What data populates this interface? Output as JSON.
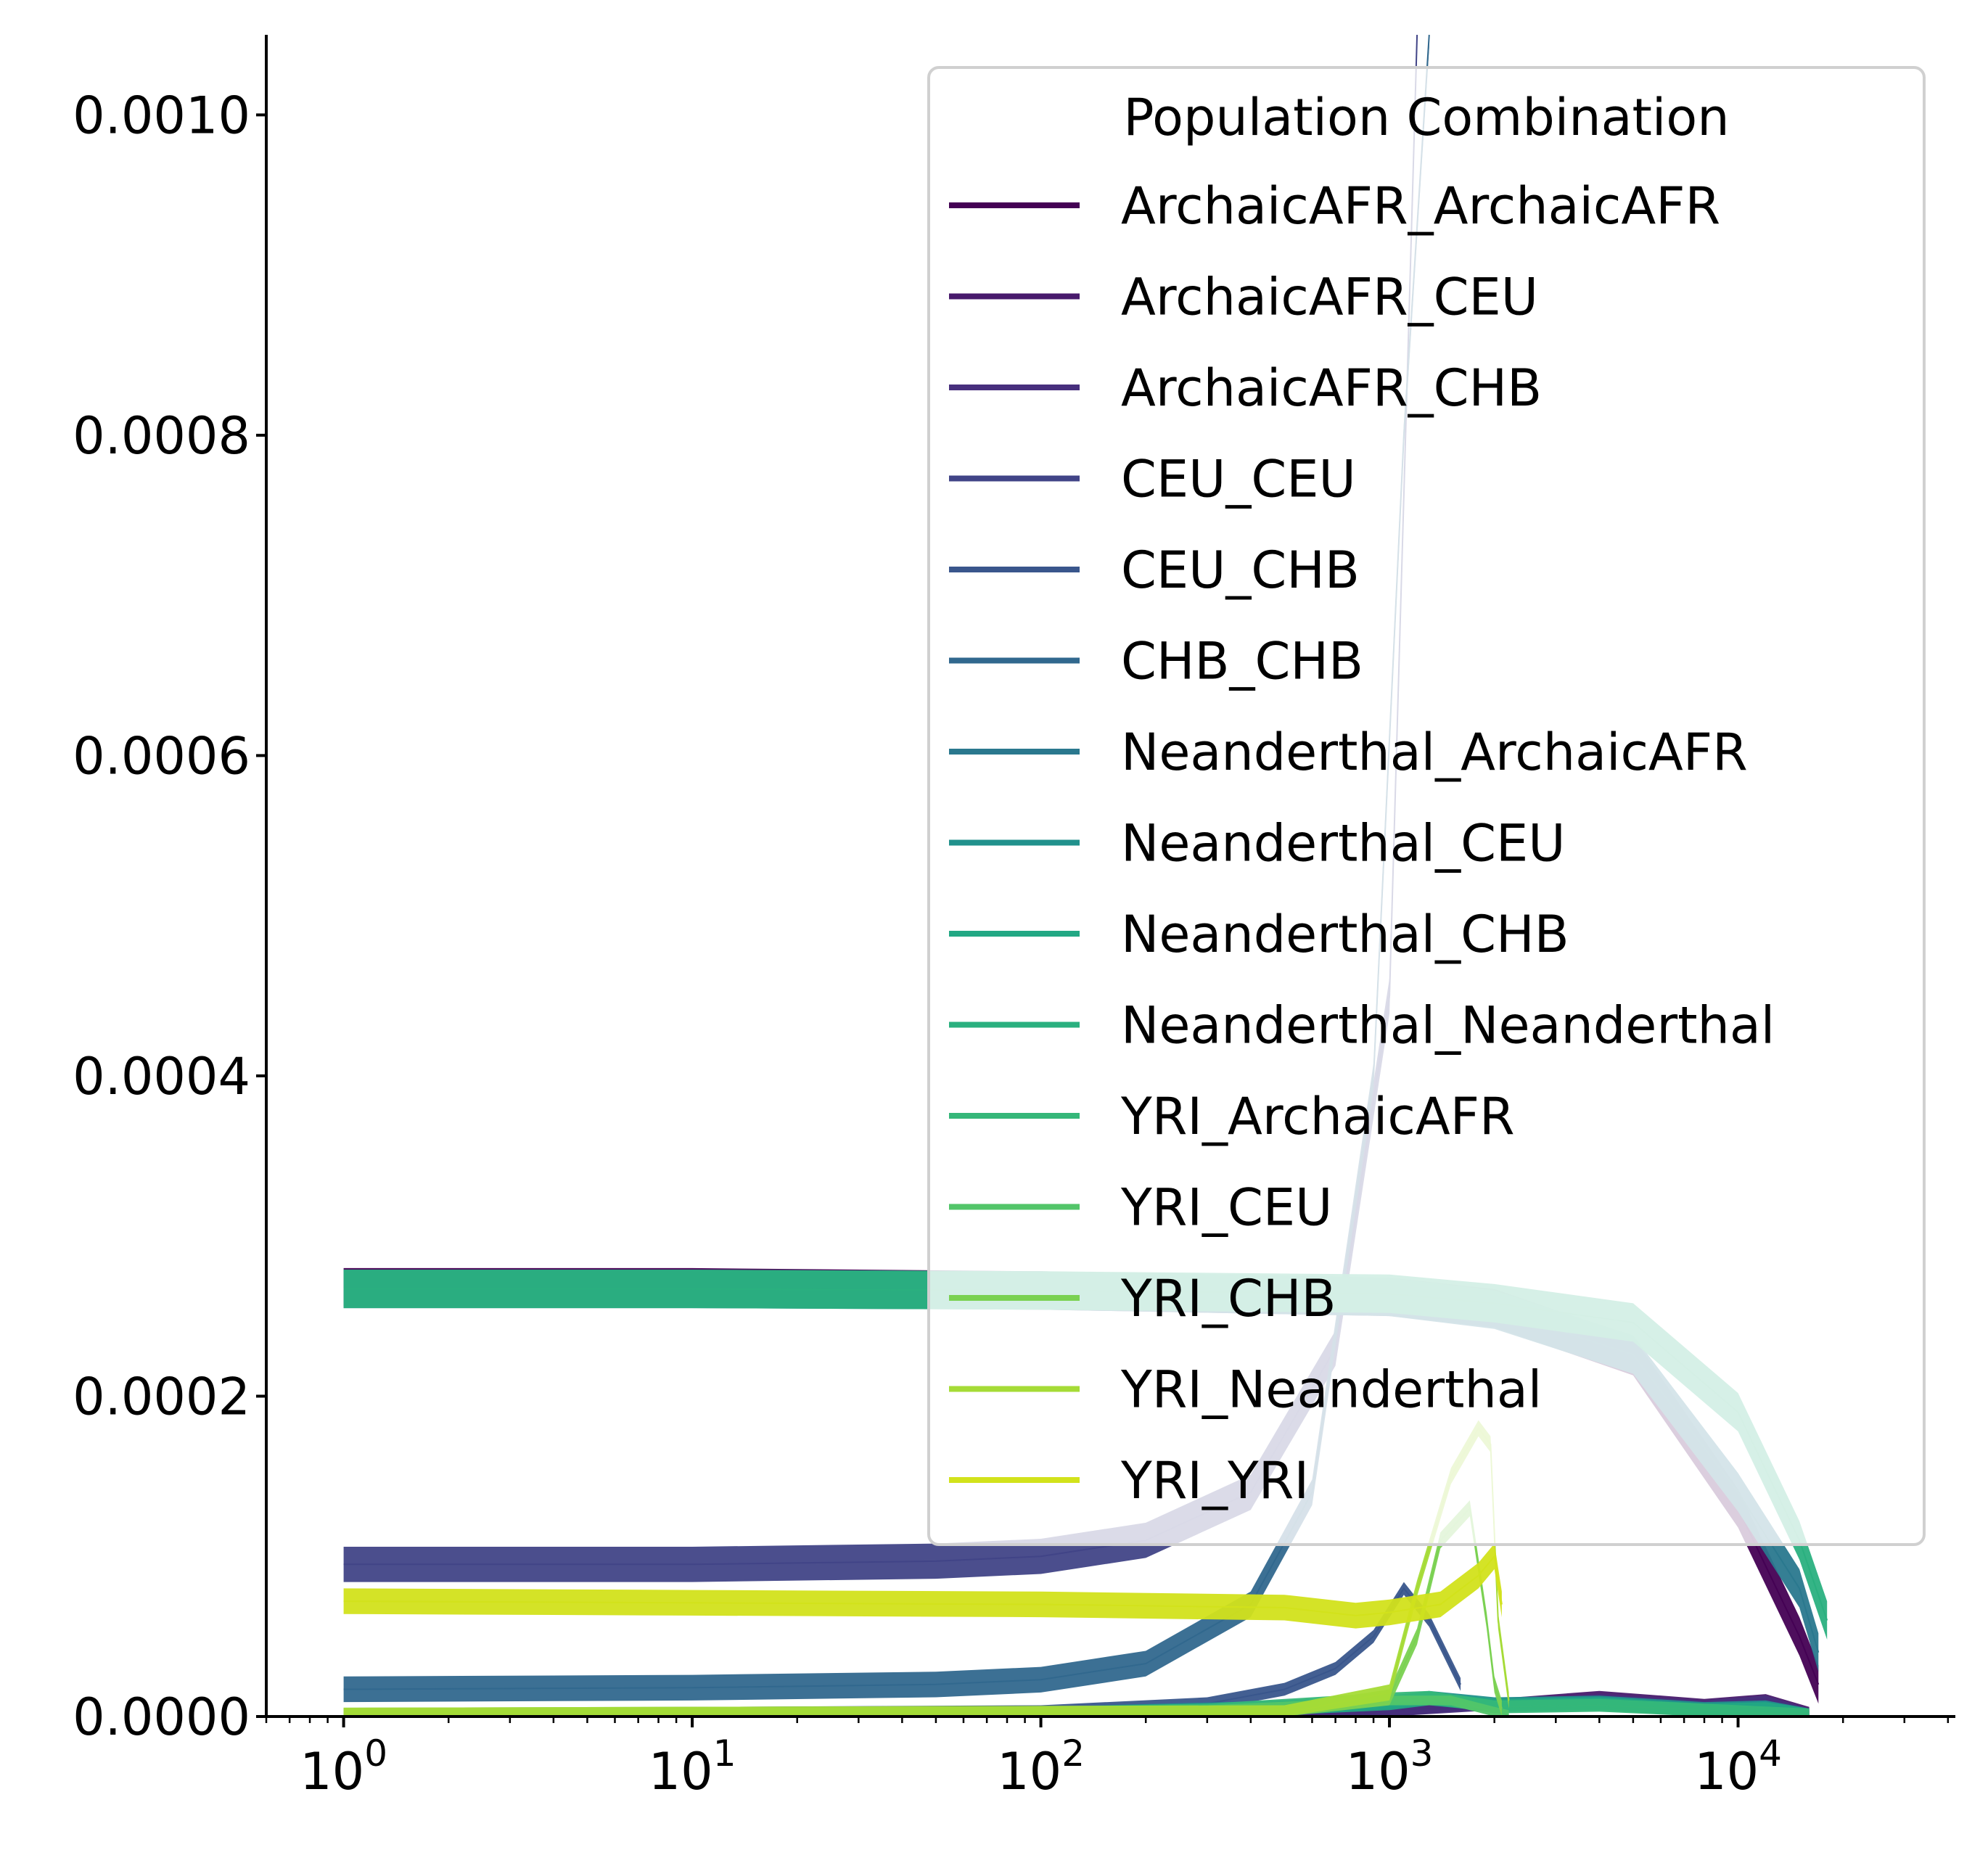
{
  "chart_data": {
    "type": "line",
    "title": "",
    "xlabel": "",
    "ylabel": "",
    "xscale": "log",
    "xlim": [
      0.6,
      42000
    ],
    "ylim": [
      0,
      0.00105
    ],
    "x_tick_labels": [
      {
        "base": "10",
        "exp": "0",
        "value": 1
      },
      {
        "base": "10",
        "exp": "1",
        "value": 10
      },
      {
        "base": "10",
        "exp": "2",
        "value": 100
      },
      {
        "base": "10",
        "exp": "3",
        "value": 1000
      },
      {
        "base": "10",
        "exp": "4",
        "value": 10000
      }
    ],
    "y_ticks": [
      0,
      0.0002,
      0.0004,
      0.0006,
      0.0008,
      0.001
    ],
    "y_tick_labels": [
      "0.0000",
      "0.0002",
      "0.0004",
      "0.0006",
      "0.0008",
      "0.0010"
    ],
    "grid": false,
    "legend": {
      "title": "Population Combination",
      "placement": "upper right",
      "entries": [
        "ArchaicAFR_ArchaicAFR",
        "ArchaicAFR_CEU",
        "ArchaicAFR_CHB",
        "CEU_CEU",
        "CEU_CHB",
        "CHB_CHB",
        "Neanderthal_ArchaicAFR",
        "Neanderthal_CEU",
        "Neanderthal_CHB",
        "Neanderthal_Neanderthal",
        "YRI_ArchaicAFR",
        "YRI_CEU",
        "YRI_CHB",
        "YRI_Neanderthal",
        "YRI_YRI"
      ]
    },
    "series": [
      {
        "name": "ArchaicAFR_ArchaicAFR",
        "color": "#440154",
        "band": 1.2e-05,
        "x": [
          1,
          10,
          100,
          1000,
          2000,
          5000,
          10000,
          15000,
          17000
        ],
        "y": [
          0.000268,
          0.000268,
          0.000266,
          0.000262,
          0.000255,
          0.000225,
          0.00013,
          5e-05,
          2e-05
        ]
      },
      {
        "name": "ArchaicAFR_CEU",
        "color": "#481a6c",
        "band": 3e-06,
        "x": [
          1,
          100,
          1000,
          2000,
          4000,
          8000,
          12000,
          16000
        ],
        "y": [
          2e-07,
          1e-06,
          3e-06,
          8e-06,
          1.3e-05,
          8e-06,
          1.1e-05,
          3e-06
        ]
      },
      {
        "name": "ArchaicAFR_CHB",
        "color": "#472f7d",
        "band": 3e-06,
        "x": [
          1,
          100,
          1000,
          2000,
          4000,
          8000,
          12000,
          16000
        ],
        "y": [
          2e-07,
          1e-06,
          3e-06,
          7e-06,
          1.1e-05,
          7e-06,
          1e-05,
          2e-06
        ]
      },
      {
        "name": "CEU_CEU",
        "color": "#414487",
        "band": 1.1e-05,
        "x": [
          1,
          10,
          50,
          100,
          200,
          400,
          700,
          1000,
          1200
        ],
        "y": [
          9.5e-05,
          9.5e-05,
          9.7e-05,
          0.0001,
          0.00011,
          0.00014,
          0.00023,
          0.00045,
          0.00105
        ]
      },
      {
        "name": "CEU_CHB",
        "color": "#39568c",
        "band": 4e-06,
        "x": [
          1,
          100,
          300,
          500,
          700,
          900,
          1100,
          1300,
          1600
        ],
        "y": [
          1e-06,
          3e-06,
          8e-06,
          1.7e-05,
          3e-05,
          5e-05,
          8e-05,
          6e-05,
          2e-05
        ]
      },
      {
        "name": "CHB_CHB",
        "color": "#31688e",
        "band": 8e-06,
        "x": [
          1,
          10,
          50,
          100,
          200,
          400,
          600,
          900,
          1100,
          1300
        ],
        "y": [
          1.7e-05,
          1.8e-05,
          2e-05,
          2.3e-05,
          3.3e-05,
          7e-05,
          0.00014,
          0.0004,
          0.0008,
          0.00105
        ]
      },
      {
        "name": "Neanderthal_ArchaicAFR",
        "color": "#2a788e",
        "band": 1.2e-05,
        "x": [
          1,
          10,
          100,
          1000,
          2000,
          5000,
          10000,
          15000,
          17000
        ],
        "y": [
          0.000267,
          0.000267,
          0.000266,
          0.000262,
          0.000254,
          0.000226,
          0.00014,
          8e-05,
          4e-05
        ]
      },
      {
        "name": "Neanderthal_CEU",
        "color": "#21918c",
        "band": 4e-06,
        "x": [
          1,
          100,
          500,
          1000,
          1300,
          2000,
          4000,
          8000,
          12000,
          16000
        ],
        "y": [
          3e-07,
          2e-06,
          6e-06,
          9e-06,
          1.2e-05,
          8e-06,
          9e-06,
          5e-06,
          6e-06,
          1e-06
        ]
      },
      {
        "name": "Neanderthal_CHB",
        "color": "#22a884",
        "band": 4e-06,
        "x": [
          1,
          100,
          500,
          1000,
          1300,
          2000,
          4000,
          8000,
          12000,
          16000
        ],
        "y": [
          3e-07,
          2e-06,
          5e-06,
          8e-06,
          1.1e-05,
          7e-06,
          8e-06,
          4e-06,
          5e-06,
          1e-06
        ]
      },
      {
        "name": "Neanderthal_Neanderthal",
        "color": "#2ab07f",
        "band": 1.2e-05,
        "x": [
          1,
          10,
          100,
          1000,
          2000,
          5000,
          10000,
          15000,
          18000
        ],
        "y": [
          0.000267,
          0.000267,
          0.000266,
          0.000264,
          0.000258,
          0.000246,
          0.00019,
          0.00011,
          6e-05
        ]
      },
      {
        "name": "YRI_ArchaicAFR",
        "color": "#35b779",
        "band": 4e-06,
        "x": [
          1,
          100,
          300,
          600,
          1000,
          1300,
          2000,
          4000,
          8000,
          16000
        ],
        "y": [
          1e-06,
          2e-06,
          4e-06,
          8e-06,
          1.1e-05,
          1.2e-05,
          6e-06,
          7e-06,
          4e-06,
          1e-06
        ]
      },
      {
        "name": "YRI_CEU",
        "color": "#52c569",
        "band": 3e-06,
        "x": [
          1,
          100,
          300,
          600,
          1000,
          1500,
          2000,
          2200
        ],
        "y": [
          5e-07,
          2e-06,
          4e-06,
          7e-06,
          1e-05,
          1e-05,
          3e-06,
          1e-06
        ]
      },
      {
        "name": "YRI_CHB",
        "color": "#7ad151",
        "band": 5e-06,
        "x": [
          1,
          500,
          1000,
          1200,
          1400,
          1700,
          1900,
          2000,
          2100
        ],
        "y": [
          5e-07,
          2e-06,
          1.2e-05,
          5e-05,
          0.00011,
          0.00013,
          6e-05,
          2e-05,
          5e-06
        ]
      },
      {
        "name": "YRI_Neanderthal",
        "color": "#a5db36",
        "band": 5e-06,
        "x": [
          1,
          500,
          1000,
          1200,
          1500,
          1800,
          1950,
          2050,
          2200
        ],
        "y": [
          5e-07,
          2e-06,
          1.5e-05,
          8e-05,
          0.00015,
          0.00018,
          0.00017,
          6e-05,
          1e-05
        ]
      },
      {
        "name": "YRI_YRI",
        "color": "#d2e21b",
        "band": 8e-06,
        "x": [
          1,
          10,
          100,
          500,
          800,
          1000,
          1400,
          1800,
          2000,
          2100
        ],
        "y": [
          7.2e-05,
          7.1e-05,
          7e-05,
          6.8e-05,
          6.3e-05,
          6.5e-05,
          7e-05,
          8.8e-05,
          0.0001,
          7e-05
        ]
      }
    ],
    "annotations": []
  }
}
